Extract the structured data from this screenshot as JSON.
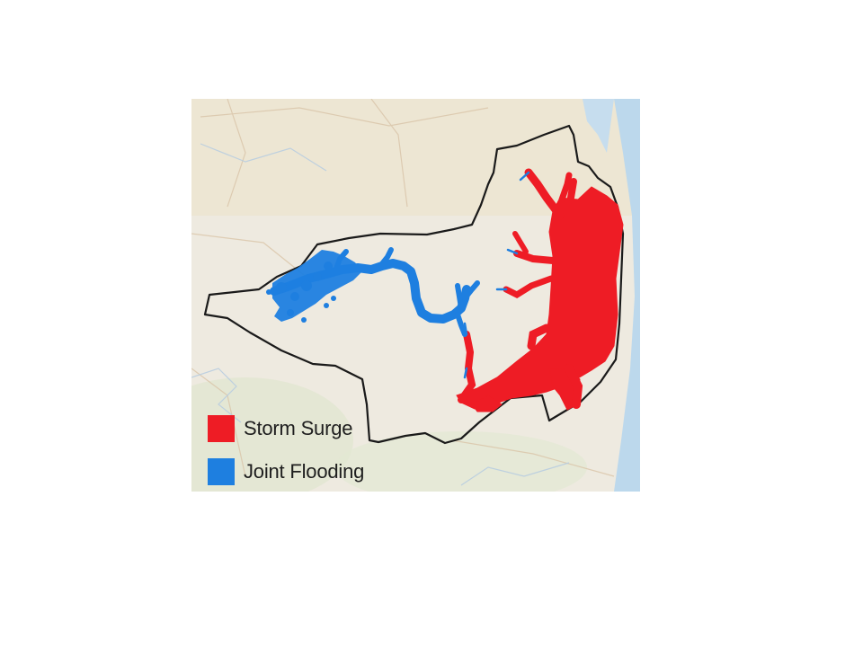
{
  "legend": [
    {
      "label": "Storm Surge",
      "color": "#ee1c25"
    },
    {
      "label": "Joint Flooding",
      "color": "#1e7fe0"
    }
  ],
  "colors": {
    "storm_surge": "#ee1c25",
    "joint_flooding": "#1e7fe0",
    "boundary": "#1a1a1a",
    "water": "#bcd8ec",
    "basemap": "#eeeae0"
  }
}
